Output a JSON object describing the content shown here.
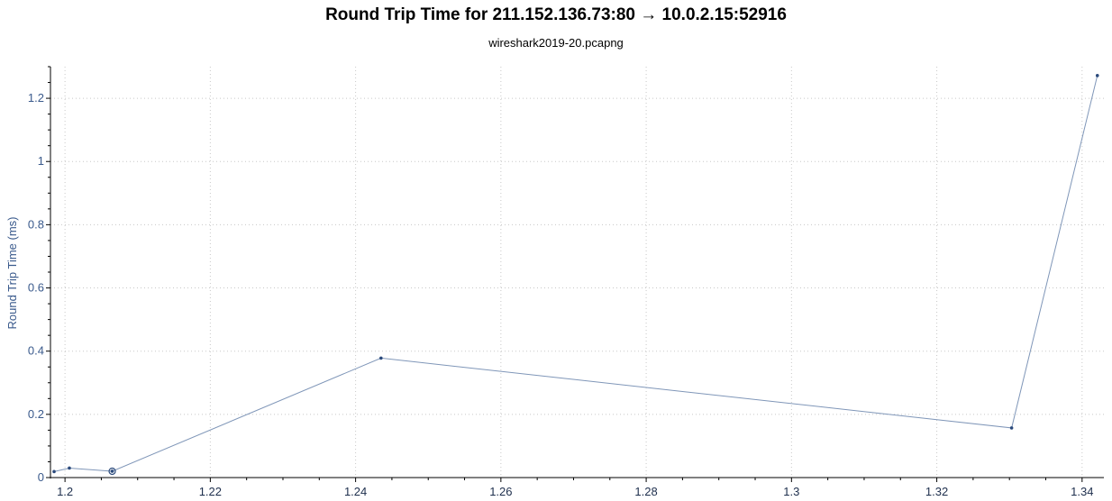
{
  "chart_data": {
    "type": "line",
    "title": "Round Trip Time for 211.152.136.73:80 → 10.0.2.15:52916",
    "subtitle": "wireshark2019-20.pcapng",
    "xlabel": "",
    "ylabel": "Round Trip Time (ms)",
    "xlim": [
      1.198,
      1.343
    ],
    "ylim": [
      0,
      1.3
    ],
    "x_ticks": [
      1.2,
      1.22,
      1.24,
      1.26,
      1.28,
      1.3,
      1.32,
      1.34
    ],
    "x_tick_labels": [
      "1.2",
      "1.22",
      "1.24",
      "1.26",
      "1.28",
      "1.3",
      "1.32",
      "1.34"
    ],
    "y_ticks": [
      0,
      0.2,
      0.4,
      0.6,
      0.8,
      1,
      1.2
    ],
    "y_tick_labels": [
      "0",
      "0.2",
      "0.4",
      "0.6",
      "0.8",
      "1",
      "1.2"
    ],
    "grid": true,
    "legend": "none",
    "series": [
      {
        "x": [
          1.1985,
          1.2006,
          1.2065,
          1.2435,
          1.3303,
          1.3421
        ],
        "y": [
          0.019,
          0.03,
          0.02,
          0.378,
          0.157,
          1.272
        ],
        "color": "#7f96b8"
      }
    ],
    "highlighted_point_index": 2,
    "colors": {
      "line": "#7f96b8",
      "marker": "#2b4a7c",
      "tick_label": "#3a5a8c",
      "grid": "#c8c8c8",
      "axis": "#000000"
    }
  }
}
